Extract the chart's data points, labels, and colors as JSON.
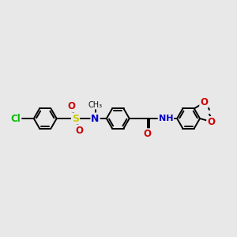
{
  "background_color": "#e8e8e8",
  "bond_color": "#000000",
  "bond_width": 1.4,
  "atoms": {
    "Cl": {
      "color": "#00bb00"
    },
    "S": {
      "color": "#cccc00"
    },
    "N": {
      "color": "#0000cc"
    },
    "O": {
      "color": "#cc0000"
    },
    "C": {
      "color": "#000000"
    }
  },
  "figsize": [
    3.0,
    3.0
  ],
  "dpi": 100,
  "xlim": [
    0,
    10
  ],
  "ylim": [
    2,
    8
  ]
}
